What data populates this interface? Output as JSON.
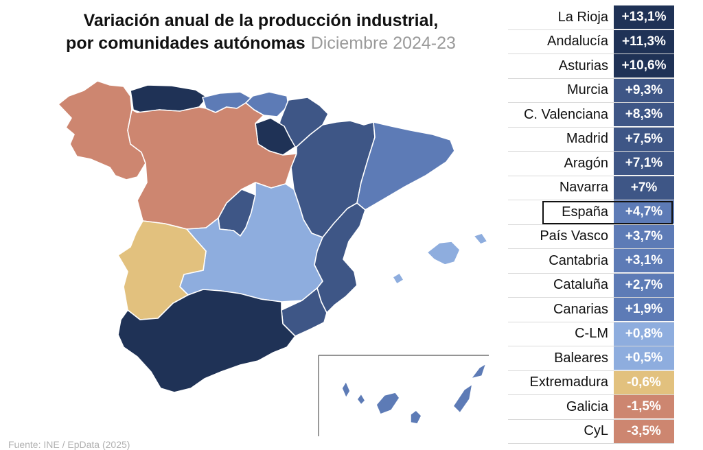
{
  "title": {
    "line1": "Variación anual de la producción industrial,",
    "line2": "por comunidades autónomas",
    "subtitle": "Diciembre 2024-23"
  },
  "source": "Fuente: INE / EpData (2025)",
  "colors": {
    "dark": "#1f3256",
    "mid": "#3e5686",
    "steel": "#5d7bb6",
    "light": "#8eadde",
    "sand": "#e2c17e",
    "salmon": "#cd8670"
  },
  "ranking": [
    {
      "region": "La Rioja",
      "value": "+13,1%",
      "color": "#1f3256"
    },
    {
      "region": "Andalucía",
      "value": "+11,3%",
      "color": "#1f3256"
    },
    {
      "region": "Asturias",
      "value": "+10,6%",
      "color": "#1f3256"
    },
    {
      "region": "Murcia",
      "value": "+9,3%",
      "color": "#3e5686"
    },
    {
      "region": "C. Valenciana",
      "value": "+8,3%",
      "color": "#3e5686"
    },
    {
      "region": "Madrid",
      "value": "+7,5%",
      "color": "#3e5686"
    },
    {
      "region": "Aragón",
      "value": "+7,1%",
      "color": "#3e5686"
    },
    {
      "region": "Navarra",
      "value": "+7%",
      "color": "#3e5686"
    },
    {
      "region": "España",
      "value": "+4,7%",
      "color": "#5d7bb6",
      "highlight": true
    },
    {
      "region": "País Vasco",
      "value": "+3,7%",
      "color": "#5d7bb6"
    },
    {
      "region": "Cantabria",
      "value": "+3,1%",
      "color": "#5d7bb6"
    },
    {
      "region": "Cataluña",
      "value": "+2,7%",
      "color": "#5d7bb6"
    },
    {
      "region": "Canarias",
      "value": "+1,9%",
      "color": "#5d7bb6"
    },
    {
      "region": "C-LM",
      "value": "+0,8%",
      "color": "#8eadde"
    },
    {
      "region": "Baleares",
      "value": "+0,5%",
      "color": "#8eadde"
    },
    {
      "region": "Extremadura",
      "value": "-0,6%",
      "color": "#e2c17e"
    },
    {
      "region": "Galicia",
      "value": "-1,5%",
      "color": "#cd8670"
    },
    {
      "region": "CyL",
      "value": "-3,5%",
      "color": "#cd8670"
    }
  ],
  "map_regions": [
    {
      "id": "galicia",
      "color": "#cd8670"
    },
    {
      "id": "asturias",
      "color": "#1f3256"
    },
    {
      "id": "cantabria",
      "color": "#5d7bb6"
    },
    {
      "id": "pais-vasco",
      "color": "#5d7bb6"
    },
    {
      "id": "navarra",
      "color": "#3e5686"
    },
    {
      "id": "la-rioja",
      "color": "#1f3256"
    },
    {
      "id": "castilla-y-leon",
      "color": "#cd8670"
    },
    {
      "id": "aragon",
      "color": "#3e5686"
    },
    {
      "id": "cataluna",
      "color": "#5d7bb6"
    },
    {
      "id": "madrid",
      "color": "#3e5686"
    },
    {
      "id": "castilla-la-mancha",
      "color": "#8eadde"
    },
    {
      "id": "extremadura",
      "color": "#e2c17e"
    },
    {
      "id": "c-valenciana",
      "color": "#3e5686"
    },
    {
      "id": "murcia",
      "color": "#3e5686"
    },
    {
      "id": "andalucia",
      "color": "#1f3256"
    },
    {
      "id": "baleares",
      "color": "#8eadde"
    },
    {
      "id": "canarias",
      "color": "#5d7bb6"
    }
  ]
}
